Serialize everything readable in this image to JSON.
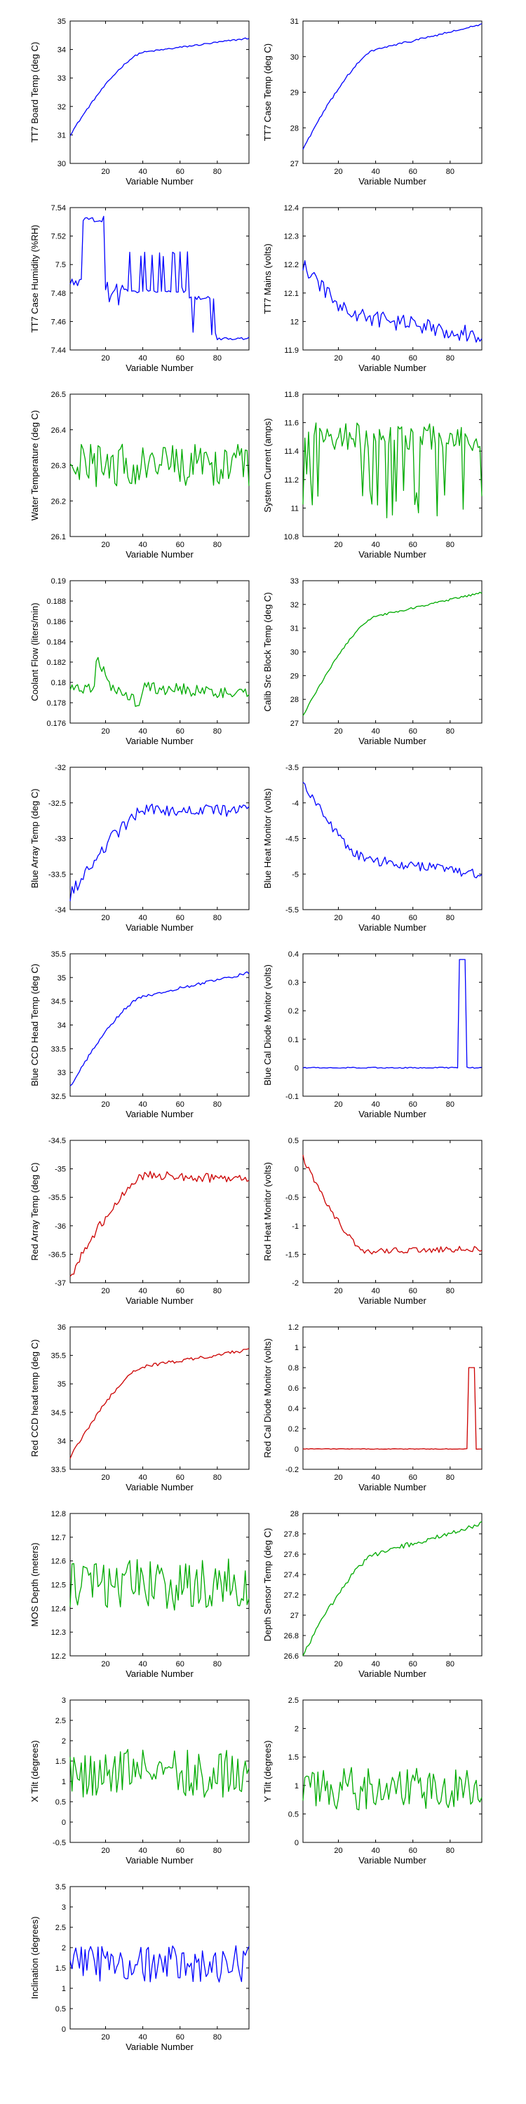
{
  "chart_data": [
    {
      "type": "line",
      "color": "#0000ff",
      "xlabel": "Variable Number",
      "ylabel": "TT7 Board Temp (deg C)",
      "xlim": [
        1,
        97
      ],
      "ylim": [
        30,
        35
      ],
      "xticks": [
        20,
        40,
        60,
        80
      ],
      "yticks": [
        "30",
        "31",
        "32",
        "33",
        "34",
        "35"
      ],
      "shape": "rise",
      "start": 31.0,
      "end": 34.4,
      "knee": 40,
      "kneeVal": 33.9,
      "noise": 0.03
    },
    {
      "type": "line",
      "color": "#0000ff",
      "xlabel": "Variable Number",
      "ylabel": "TT7 Case Temp (deg C)",
      "xlim": [
        1,
        97
      ],
      "ylim": [
        27,
        31
      ],
      "xticks": [
        20,
        40,
        60,
        80
      ],
      "yticks": [
        "27",
        "28",
        "29",
        "30",
        "31"
      ],
      "shape": "rise",
      "start": 27.4,
      "end": 30.9,
      "knee": 40,
      "kneeVal": 30.2,
      "noise": 0.03
    },
    {
      "type": "line",
      "color": "#0000ff",
      "xlabel": "Variable Number",
      "ylabel": "TT7 Case Humidity (%RH)",
      "xlim": [
        1,
        97
      ],
      "ylim": [
        7.44,
        7.54
      ],
      "xticks": [
        20,
        40,
        60,
        80
      ],
      "yticks": [
        "7.44",
        "7.46",
        "7.48",
        "7.5",
        "7.52",
        "7.54"
      ],
      "shape": "humidity",
      "noise": 0.0
    },
    {
      "type": "line",
      "color": "#0000ff",
      "xlabel": "Variable Number",
      "ylabel": "TT7 Mains  (volts)",
      "xlim": [
        1,
        97
      ],
      "ylim": [
        11.9,
        12.4
      ],
      "xticks": [
        20,
        40,
        60,
        80
      ],
      "yticks": [
        "11.9",
        "12",
        "12.1",
        "12.2",
        "12.3",
        "12.4"
      ],
      "shape": "fall",
      "start": 12.2,
      "end": 11.95,
      "knee": 30,
      "kneeVal": 12.02,
      "noise": 0.03
    },
    {
      "type": "line",
      "color": "#00aa00",
      "xlabel": "Variable Number",
      "ylabel": "Water Temperature (deg C)",
      "xlim": [
        1,
        97
      ],
      "ylim": [
        26.1,
        26.5
      ],
      "xticks": [
        20,
        40,
        60,
        80
      ],
      "yticks": [
        "26.1",
        "26.2",
        "26.3",
        "26.4",
        "26.5"
      ],
      "shape": "noise",
      "mean": 26.3,
      "noise": 0.06
    },
    {
      "type": "line",
      "color": "#00aa00",
      "xlabel": "Variable Number",
      "ylabel": "System Current (amps)",
      "xlim": [
        1,
        97
      ],
      "ylim": [
        10.8,
        11.8
      ],
      "xticks": [
        20,
        40,
        60,
        80
      ],
      "yticks": [
        "10.8",
        "11",
        "11.2",
        "11.4",
        "11.6",
        "11.8"
      ],
      "shape": "spiky",
      "mean": 11.5,
      "noise": 0.1
    },
    {
      "type": "line",
      "color": "#00aa00",
      "xlabel": "Variable Number",
      "ylabel": "Coolant Flow (liters/min)",
      "xlim": [
        1,
        97
      ],
      "ylim": [
        0.176,
        0.19
      ],
      "xticks": [
        20,
        40,
        60,
        80
      ],
      "yticks": [
        "0.176",
        "0.178",
        "0.18",
        "0.182",
        "0.184",
        "0.186",
        "0.188",
        "0.19"
      ],
      "shape": "coolant",
      "noise": 0.0006
    },
    {
      "type": "line",
      "color": "#00aa00",
      "xlabel": "Variable Number",
      "ylabel": "Calib Src Block Temp (deg C)",
      "xlim": [
        1,
        97
      ],
      "ylim": [
        27,
        33
      ],
      "xticks": [
        20,
        40,
        60,
        80
      ],
      "yticks": [
        "27",
        "28",
        "29",
        "30",
        "31",
        "32",
        "33"
      ],
      "shape": "rise",
      "start": 27.3,
      "end": 32.5,
      "knee": 40,
      "kneeVal": 31.5,
      "noise": 0.04
    },
    {
      "type": "line",
      "color": "#0000ff",
      "xlabel": "Variable Number",
      "ylabel": "Blue Array Temp (deg C)",
      "xlim": [
        1,
        97
      ],
      "ylim": [
        -34,
        -32
      ],
      "xticks": [
        20,
        40,
        60,
        80
      ],
      "yticks": [
        "-34",
        "-33.5",
        "-33",
        "-32.5",
        "-32"
      ],
      "shape": "rise",
      "start": -33.8,
      "end": -32.6,
      "knee": 42,
      "kneeVal": -32.6,
      "noise": 0.09
    },
    {
      "type": "line",
      "color": "#0000ff",
      "xlabel": "Variable Number",
      "ylabel": "Blue Heat Monitor (volts)",
      "xlim": [
        1,
        97
      ],
      "ylim": [
        -5.5,
        -3.5
      ],
      "xticks": [
        20,
        40,
        60,
        80
      ],
      "yticks": [
        "-5.5",
        "-5",
        "-4.5",
        "-4",
        "-3.5"
      ],
      "shape": "fall",
      "start": -3.7,
      "end": -5.0,
      "knee": 35,
      "kneeVal": -4.8,
      "noise": 0.07
    },
    {
      "type": "line",
      "color": "#0000ff",
      "xlabel": "Variable Number",
      "ylabel": "Blue CCD Head Temp (deg C)",
      "xlim": [
        1,
        97
      ],
      "ylim": [
        32.5,
        35.5
      ],
      "xticks": [
        20,
        40,
        60,
        80
      ],
      "yticks": [
        "32.5",
        "33",
        "33.5",
        "34",
        "34.5",
        "35",
        "35.5"
      ],
      "shape": "rise",
      "start": 32.7,
      "end": 35.1,
      "knee": 40,
      "kneeVal": 34.6,
      "noise": 0.03
    },
    {
      "type": "line",
      "color": "#0000ff",
      "xlabel": "Variable Number",
      "ylabel": "Blue Cal Diode Monitor (volts)",
      "xlim": [
        1,
        97
      ],
      "ylim": [
        -0.1,
        0.4
      ],
      "xticks": [
        20,
        40,
        60,
        80
      ],
      "yticks": [
        "-0.1",
        "0",
        "0.1",
        "0.2",
        "0.3",
        "0.4"
      ],
      "shape": "pulse",
      "base": 0.0,
      "peak": 0.38,
      "pulseStart": 85,
      "pulseEnd": 88,
      "noise": 0.002
    },
    {
      "type": "line",
      "color": "#cc0000",
      "xlabel": "Variable Number",
      "ylabel": "Red Array Temp (deg C)",
      "xlim": [
        1,
        97
      ],
      "ylim": [
        -37,
        -34.5
      ],
      "xticks": [
        20,
        40,
        60,
        80
      ],
      "yticks": [
        "-37",
        "-36.5",
        "-36",
        "-35.5",
        "-35",
        "-34.5"
      ],
      "shape": "rise",
      "start": -36.9,
      "end": -35.2,
      "knee": 42,
      "kneeVal": -35.1,
      "noise": 0.08
    },
    {
      "type": "line",
      "color": "#cc0000",
      "xlabel": "Variable Number",
      "ylabel": "Red Heat Monitor (volts)",
      "xlim": [
        1,
        97
      ],
      "ylim": [
        -2,
        0.5
      ],
      "xticks": [
        20,
        40,
        60,
        80
      ],
      "yticks": [
        "-2",
        "-1.5",
        "-1",
        "-0.5",
        "0",
        "0.5"
      ],
      "shape": "fall",
      "start": 0.2,
      "end": -1.4,
      "knee": 35,
      "kneeVal": -1.45,
      "noise": 0.05
    },
    {
      "type": "line",
      "color": "#cc0000",
      "xlabel": "Variable Number",
      "ylabel": "Red CCD head temp (deg C)",
      "xlim": [
        1,
        97
      ],
      "ylim": [
        33.5,
        36
      ],
      "xticks": [
        20,
        40,
        60,
        80
      ],
      "yticks": [
        "33.5",
        "34",
        "34.5",
        "35",
        "35.5",
        "36"
      ],
      "shape": "rise",
      "start": 33.7,
      "end": 35.6,
      "knee": 40,
      "kneeVal": 35.3,
      "noise": 0.03
    },
    {
      "type": "line",
      "color": "#cc0000",
      "xlabel": "Variable Number",
      "ylabel": "Red Cal Diode Monitor (volts)",
      "xlim": [
        1,
        97
      ],
      "ylim": [
        -0.2,
        1.2
      ],
      "xticks": [
        20,
        40,
        60,
        80
      ],
      "yticks": [
        "-0.2",
        "0",
        "0.2",
        "0.4",
        "0.6",
        "0.8",
        "1",
        "1.2"
      ],
      "shape": "pulse",
      "base": 0.0,
      "peak": 0.8,
      "pulseStart": 90,
      "pulseEnd": 93,
      "noise": 0.003
    },
    {
      "type": "line",
      "color": "#00aa00",
      "xlabel": "Variable Number",
      "ylabel": "MOS Depth  (meters)",
      "xlim": [
        1,
        97
      ],
      "ylim": [
        12.2,
        12.8
      ],
      "xticks": [
        20,
        40,
        60,
        80
      ],
      "yticks": [
        "12.2",
        "12.3",
        "12.4",
        "12.5",
        "12.6",
        "12.7",
        "12.8"
      ],
      "shape": "noise",
      "mean": 12.5,
      "noise": 0.11
    },
    {
      "type": "line",
      "color": "#00aa00",
      "xlabel": "Variable Number",
      "ylabel": "Depth Sensor Temp (deg C)",
      "xlim": [
        1,
        97
      ],
      "ylim": [
        26.6,
        28
      ],
      "xticks": [
        20,
        40,
        60,
        80
      ],
      "yticks": [
        "26.6",
        "26.8",
        "27",
        "27.2",
        "27.4",
        "27.6",
        "27.8",
        "28"
      ],
      "shape": "rise",
      "start": 26.6,
      "end": 27.9,
      "knee": 40,
      "kneeVal": 27.6,
      "noise": 0.025
    },
    {
      "type": "line",
      "color": "#00aa00",
      "xlabel": "Variable Number",
      "ylabel": "X Tilt  (degrees)",
      "xlim": [
        1,
        97
      ],
      "ylim": [
        -0.5,
        3
      ],
      "xticks": [
        20,
        40,
        60,
        80
      ],
      "yticks": [
        "-0.5",
        "0",
        "0.5",
        "1",
        "1.5",
        "2",
        "2.5",
        "3"
      ],
      "shape": "noise",
      "mean": 1.2,
      "noise": 0.6
    },
    {
      "type": "line",
      "color": "#00aa00",
      "xlabel": "Variable Number",
      "ylabel": "Y Tilt  (degrees)",
      "xlim": [
        1,
        97
      ],
      "ylim": [
        0,
        2.5
      ],
      "xticks": [
        20,
        40,
        60,
        80
      ],
      "yticks": [
        "0",
        "0.5",
        "1",
        "1.5",
        "2",
        "2.5"
      ],
      "shape": "noise",
      "mean": 0.95,
      "noise": 0.38
    },
    {
      "type": "line",
      "color": "#0000ff",
      "xlabel": "Variable Number",
      "ylabel": "Inclination  (degrees)",
      "xlim": [
        1,
        97
      ],
      "ylim": [
        0,
        3.5
      ],
      "xticks": [
        20,
        40,
        60,
        80
      ],
      "yticks": [
        "0",
        "0.5",
        "1",
        "1.5",
        "2",
        "2.5",
        "3",
        "3.5"
      ],
      "shape": "noise",
      "mean": 1.6,
      "noise": 0.45
    }
  ]
}
